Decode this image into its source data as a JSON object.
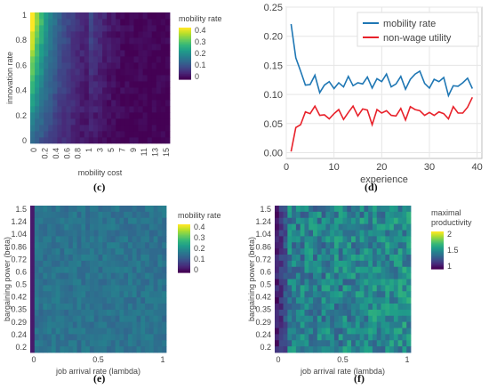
{
  "chart_data": [
    {
      "type": "heatmap",
      "panel_label": "(c)",
      "xlabel": "mobility cost",
      "ylabel": "innovation rate",
      "x_ticks": [
        "0",
        "0.2",
        "0.4",
        "0.6",
        "0.8",
        "1",
        "3",
        "5",
        "7",
        "9",
        "11",
        "13",
        "15"
      ],
      "y_ticks": [
        "0",
        "0.2",
        "0.4",
        "0.6",
        "0.8",
        "1"
      ],
      "colorbar_title": "mobility rate",
      "colorbar_ticks": [
        "0.4",
        "0.3",
        "0.2",
        "0.1",
        "0"
      ],
      "colorscale": "viridis",
      "zlim": [
        0,
        0.42
      ],
      "grid": false,
      "legend": "colorbar right",
      "z_description_rows": "innovation rate from 0 (bottom) to 1 (top), 21 rows x 31 cols",
      "z": [
        [
          0.14,
          0.12,
          0.11,
          0.1,
          0.09,
          0.08,
          0.07,
          0.06,
          0.05,
          0.04,
          0.04,
          0.03,
          0.03,
          0.02,
          0.02,
          0.02,
          0.01,
          0.01,
          0.01,
          0.01,
          0.01,
          0.0,
          0.0,
          0.0,
          0.0,
          0.0,
          0.0,
          0.0,
          0.0,
          0.0,
          0.0
        ]
      ],
      "model": {
        "rows": 21,
        "cols": 31,
        "max_top_left": 0.4,
        "min_top_left_cost": 0.12,
        "cost_half_width_cols": 11,
        "decay_after_cols": 12
      }
    },
    {
      "type": "line",
      "panel_label": "(d)",
      "xlabel": "experience",
      "ylabel": "",
      "xlim": [
        0,
        41
      ],
      "ylim": [
        -0.01,
        0.25
      ],
      "x_ticks": [
        0,
        10,
        20,
        30,
        40
      ],
      "y_ticks": [
        0.0,
        0.05,
        0.1,
        0.15,
        0.2,
        0.25
      ],
      "y_tick_labels": [
        "0.00",
        "0.05",
        "0.10",
        "0.15",
        "0.20",
        "0.25"
      ],
      "grid": true,
      "legend": "top-right",
      "x": [
        1,
        2,
        3,
        4,
        5,
        6,
        7,
        8,
        9,
        10,
        11,
        12,
        13,
        14,
        15,
        16,
        17,
        18,
        19,
        20,
        21,
        22,
        23,
        24,
        25,
        26,
        27,
        28,
        29,
        30,
        31,
        32,
        33,
        34,
        35,
        36,
        37,
        38,
        39
      ],
      "series": [
        {
          "name": "mobility rate",
          "color": "#1f77b4",
          "values": [
            0.221,
            0.163,
            0.14,
            0.116,
            0.117,
            0.133,
            0.103,
            0.116,
            0.122,
            0.11,
            0.12,
            0.113,
            0.131,
            0.115,
            0.12,
            0.118,
            0.13,
            0.111,
            0.127,
            0.122,
            0.135,
            0.113,
            0.118,
            0.131,
            0.109,
            0.126,
            0.135,
            0.14,
            0.119,
            0.111,
            0.126,
            0.122,
            0.129,
            0.098,
            0.115,
            0.114,
            0.12,
            0.128,
            0.11
          ]
        },
        {
          "name": "non-wage utility",
          "color": "#e8222b",
          "values": [
            0.002,
            0.043,
            0.048,
            0.07,
            0.067,
            0.08,
            0.064,
            0.065,
            0.058,
            0.067,
            0.074,
            0.057,
            0.069,
            0.08,
            0.063,
            0.075,
            0.073,
            0.048,
            0.074,
            0.068,
            0.072,
            0.064,
            0.063,
            0.076,
            0.056,
            0.079,
            0.074,
            0.072,
            0.064,
            0.069,
            0.064,
            0.07,
            0.067,
            0.058,
            0.079,
            0.068,
            0.068,
            0.078,
            0.095
          ]
        }
      ]
    },
    {
      "type": "heatmap",
      "panel_label": "(e)",
      "xlabel": "job arrival rate (lambda)",
      "ylabel": "bargaining power (beta)",
      "x_ticks": [
        "0",
        "0.5",
        "1"
      ],
      "y_ticks": [
        "1.5",
        "1.24",
        "1.04",
        "0.86",
        "0.72",
        "0.6",
        "0.5",
        "0.42",
        "0.35",
        "0.29",
        "0.24",
        "0.2"
      ],
      "colorbar_title": "mobility rate",
      "colorbar_ticks": [
        "0.4",
        "0.3",
        "0.2",
        "0.1",
        "0"
      ],
      "colorscale": "viridis",
      "zlim": [
        0,
        0.42
      ],
      "grid": false,
      "legend": "colorbar right",
      "model": {
        "rows": 24,
        "cols": 32,
        "first_col": 0.03,
        "base": 0.16,
        "noise": 0.025
      }
    },
    {
      "type": "heatmap",
      "panel_label": "(f)",
      "xlabel": "job arrival rate (lambda)",
      "ylabel": "bargaining power (beta)",
      "x_ticks": [
        "0",
        "0.5",
        "1"
      ],
      "y_ticks": [
        "1.5",
        "1.24",
        "1.04",
        "0.86",
        "0.72",
        "0.6",
        "0.5",
        "0.42",
        "0.35",
        "0.29",
        "0.24",
        "0.2"
      ],
      "colorbar_title_lines": [
        "maximal",
        "productivity"
      ],
      "colorbar_ticks": [
        "2",
        "1.5",
        "1"
      ],
      "colorscale": "viridis",
      "zlim": [
        0.85,
        2.05
      ],
      "grid": false,
      "legend": "colorbar right",
      "model": {
        "rows": 24,
        "cols": 32,
        "first_cols": [
          0.95,
          1.05,
          1.15
        ],
        "base": 1.35,
        "noise": 0.2
      }
    }
  ]
}
